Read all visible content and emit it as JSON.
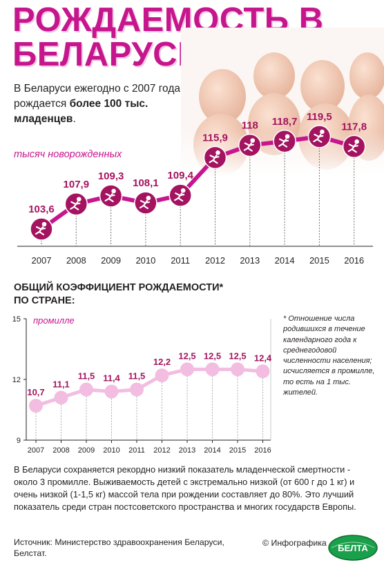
{
  "title_lines": [
    "РОЖДАЕМОСТЬ В",
    "БЕЛАРУСИ"
  ],
  "intro": {
    "part1": "В Беларуси ежегодно с 2007 года рождается ",
    "bold": "более 100 тыс. младенцев",
    "part2": "."
  },
  "colors": {
    "accent": "#c6168d",
    "marker": "#a4135f",
    "line2": "#f2bde0"
  },
  "chart_data": [
    {
      "type": "line",
      "unit_label": "тысяч новорожденных",
      "categories": [
        "2007",
        "2008",
        "2009",
        "2010",
        "2011",
        "2012",
        "2013",
        "2014",
        "2015",
        "2016"
      ],
      "values": [
        103.6,
        107.9,
        109.3,
        108.1,
        109.4,
        115.9,
        118,
        118.7,
        119.5,
        117.8
      ],
      "value_labels": [
        "103,6",
        "107,9",
        "109,3",
        "108,1",
        "109,4",
        "115,9",
        "118",
        "118,7",
        "119,5",
        "117,8"
      ],
      "marker_icon": "baby-icon"
    },
    {
      "type": "line",
      "title": "ОБЩИЙ КОЭФФИЦИЕНТ РОЖДАЕМОСТИ* ПО СТРАНЕ:",
      "unit_label": "промилле",
      "categories": [
        "2007",
        "2008",
        "2009",
        "2010",
        "2011",
        "2012",
        "2013",
        "2014",
        "2015",
        "2016"
      ],
      "values": [
        10.7,
        11.1,
        11.5,
        11.4,
        11.5,
        12.2,
        12.5,
        12.5,
        12.5,
        12.4
      ],
      "value_labels": [
        "10,7",
        "11,1",
        "11,5",
        "11,4",
        "11,5",
        "12,2",
        "12,5",
        "12,5",
        "12,5",
        "12,4"
      ],
      "ylim": [
        9,
        15
      ],
      "yticks": [
        "9",
        "12",
        "15"
      ]
    }
  ],
  "subhead_lines": [
    "ОБЩИЙ КОЭФФИЦИЕНТ РОЖДАЕМОСТИ*",
    "ПО СТРАНЕ:"
  ],
  "footnote": "* Отношение числа родившихся в течение календарного года к среднегодовой численности населения; исчисляется в промилле, то есть на 1 тыс. жителей.",
  "body_text": "В Беларуси сохраняется рекордно низкий показатель младенческой смертности - около 3 промилле. Выживаемость детей с экстремально низкой (от 600 г до 1 кг) и очень низкой (1-1,5 кг) массой тела при рождении составляет до 80%. Это лучший показатель среди стран постсоветского пространства и многих государств Европы.",
  "source": "Источник: Министерство здравоохранения Беларуси, Белстат.",
  "credit": "© Инфографика",
  "logo_text": "БЕЛТА"
}
